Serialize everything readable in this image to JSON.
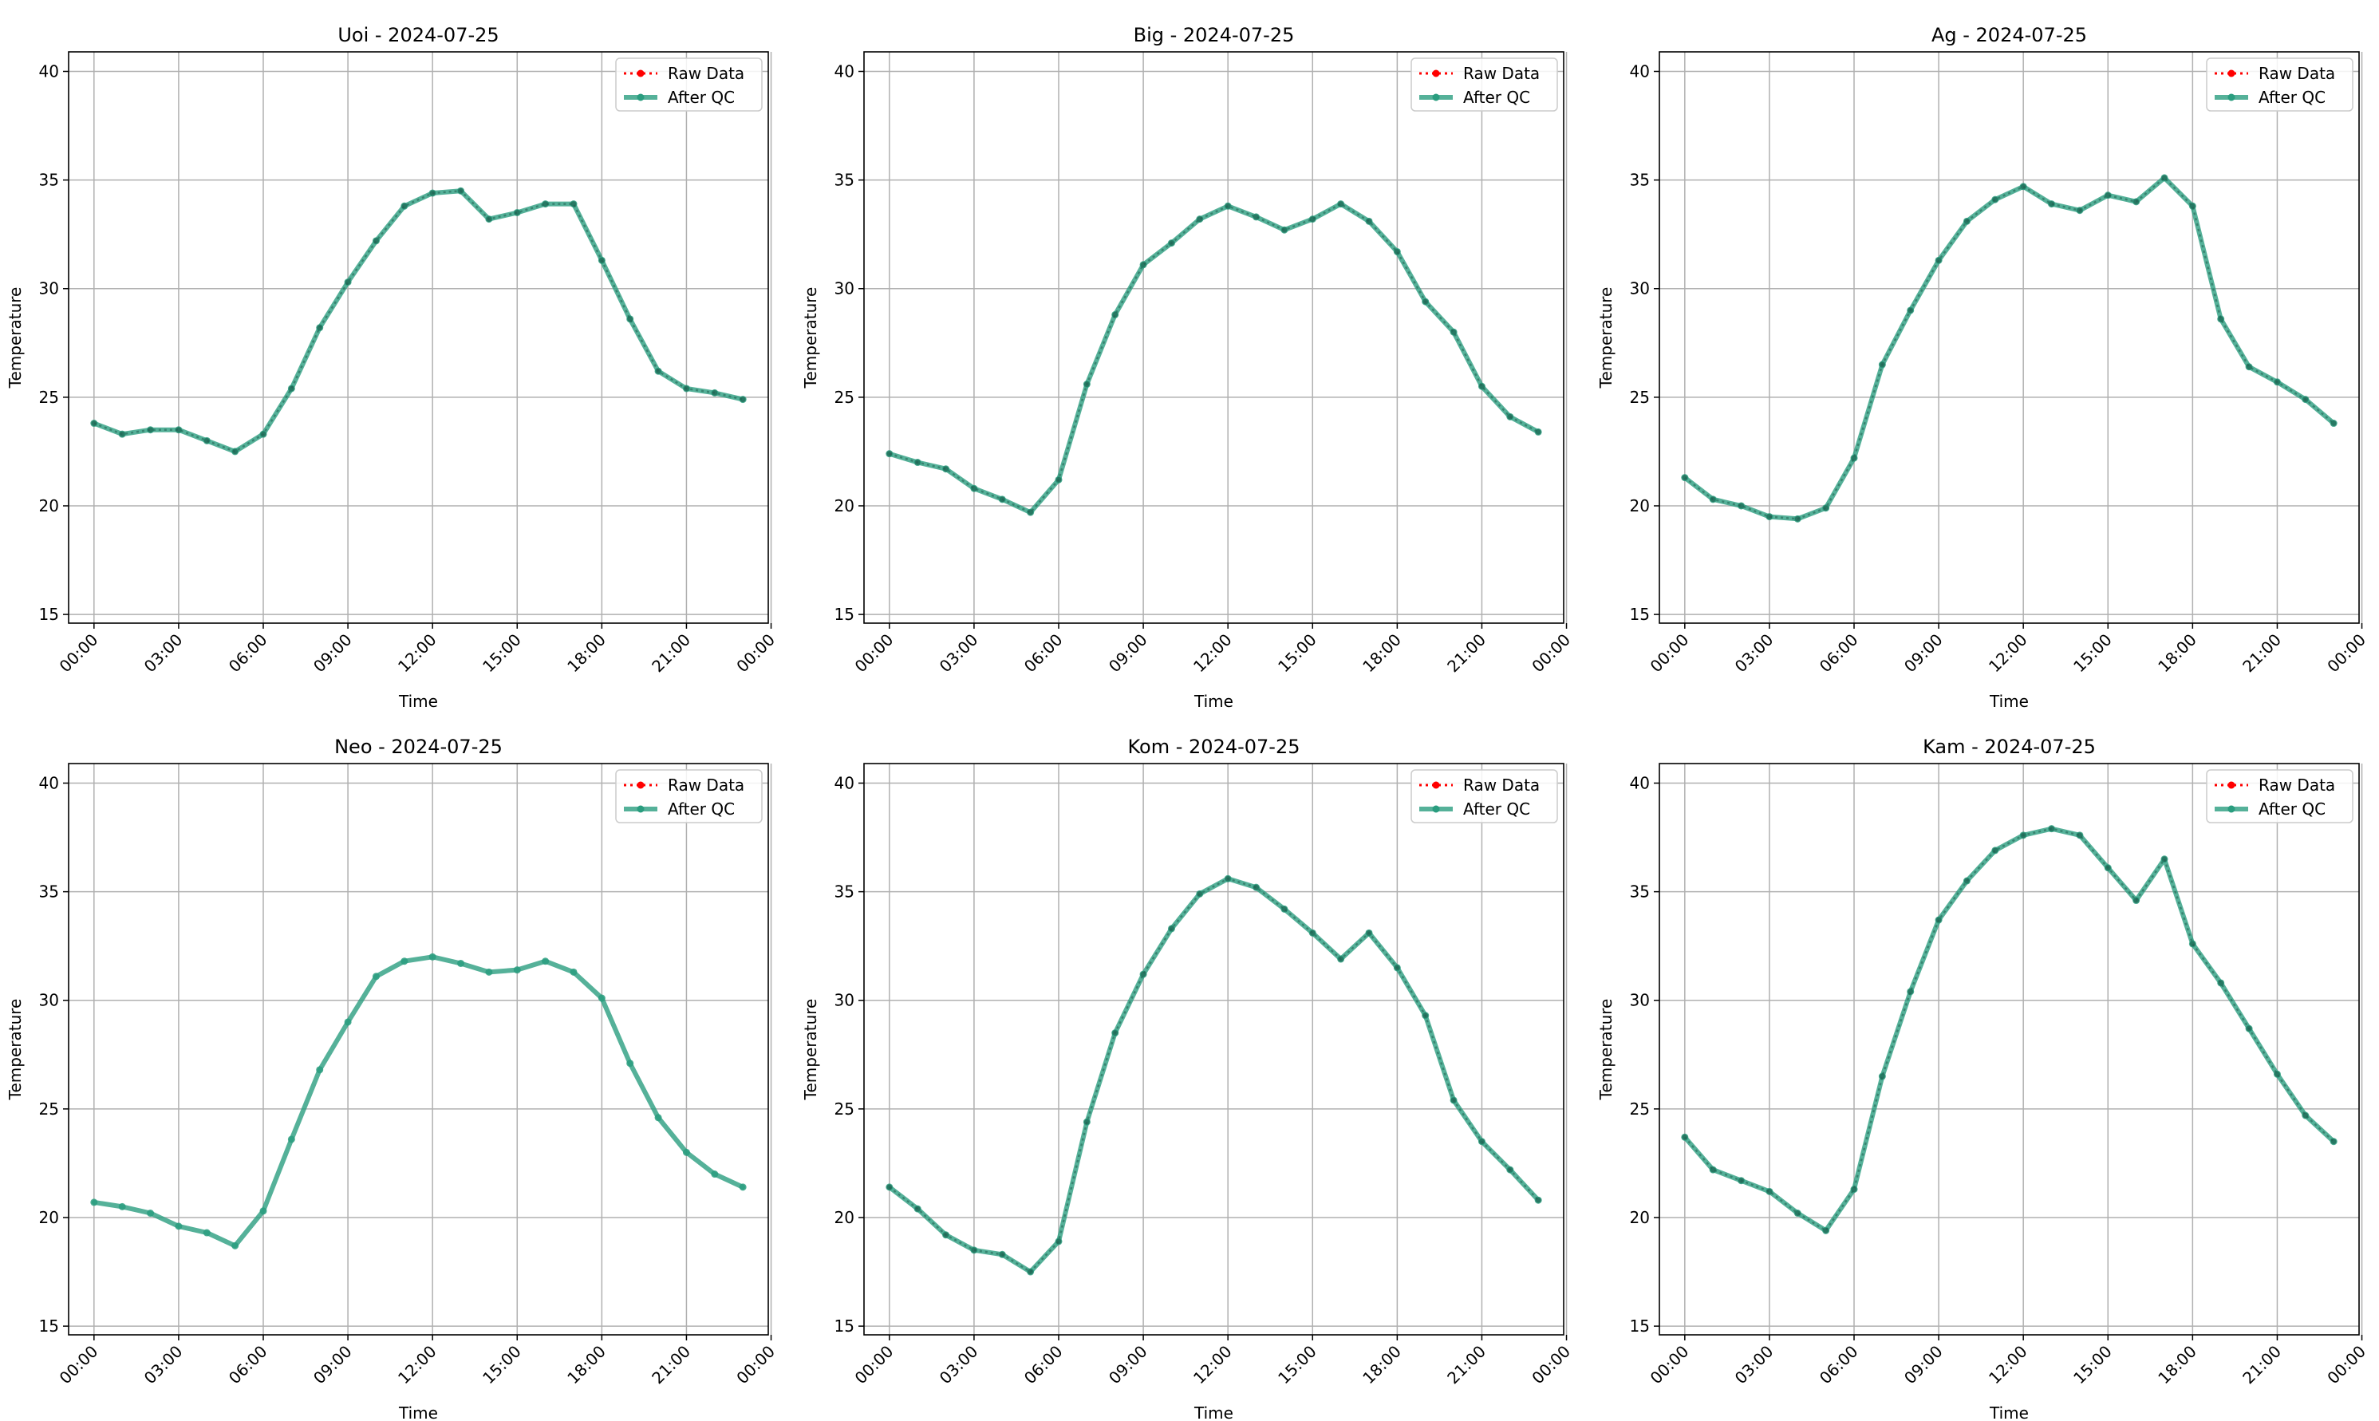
{
  "chart_data": [
    {
      "type": "line",
      "title": "Uoi - 2024-07-25",
      "xlabel": "Time",
      "ylabel": "Temperature",
      "ylim": [
        14.6,
        40.9
      ],
      "xlim": [
        -0.9,
        23.9
      ],
      "x": [
        0,
        1,
        2,
        3,
        4,
        5,
        6,
        7,
        8,
        9,
        10,
        11,
        12,
        13,
        14,
        15,
        16,
        17,
        18,
        19,
        20,
        21,
        22,
        23
      ],
      "yticks": [
        15,
        20,
        25,
        30,
        35,
        40
      ],
      "xticks": [
        0,
        3,
        6,
        9,
        12,
        15,
        18,
        21,
        24
      ],
      "xticklabels": [
        "00:00",
        "03:00",
        "06:00",
        "09:00",
        "12:00",
        "15:00",
        "18:00",
        "21:00",
        "00:00"
      ],
      "grid": true,
      "legend": "top-right",
      "series": [
        {
          "name": "Raw Data",
          "values": [
            23.8,
            23.3,
            23.5,
            23.5,
            23.0,
            22.5,
            23.3,
            25.4,
            28.2,
            30.3,
            32.2,
            33.8,
            34.4,
            34.5,
            33.2,
            33.5,
            33.9,
            33.9,
            31.3,
            28.6,
            26.2,
            25.4,
            25.2,
            24.9
          ]
        },
        {
          "name": "After QC",
          "values": [
            23.8,
            23.3,
            23.5,
            23.5,
            23.0,
            22.5,
            23.3,
            25.4,
            28.2,
            30.3,
            32.2,
            33.8,
            34.4,
            34.5,
            33.2,
            33.5,
            33.9,
            33.9,
            31.3,
            28.6,
            26.2,
            25.4,
            25.2,
            24.9
          ]
        }
      ]
    },
    {
      "type": "line",
      "title": "Big - 2024-07-25",
      "xlabel": "Time",
      "ylabel": "Temperature",
      "ylim": [
        14.6,
        40.9
      ],
      "xlim": [
        -0.9,
        23.9
      ],
      "x": [
        0,
        1,
        2,
        3,
        4,
        5,
        6,
        7,
        8,
        9,
        10,
        11,
        12,
        13,
        14,
        15,
        16,
        17,
        18,
        19,
        20,
        21,
        22,
        23
      ],
      "yticks": [
        15,
        20,
        25,
        30,
        35,
        40
      ],
      "xticks": [
        0,
        3,
        6,
        9,
        12,
        15,
        18,
        21,
        24
      ],
      "xticklabels": [
        "00:00",
        "03:00",
        "06:00",
        "09:00",
        "12:00",
        "15:00",
        "18:00",
        "21:00",
        "00:00"
      ],
      "grid": true,
      "legend": "top-right",
      "series": [
        {
          "name": "Raw Data",
          "values": [
            22.4,
            22.0,
            21.7,
            20.8,
            20.3,
            19.7,
            21.2,
            25.6,
            28.8,
            31.1,
            32.1,
            33.2,
            33.8,
            33.3,
            32.7,
            33.2,
            33.9,
            33.1,
            31.7,
            29.4,
            28.0,
            25.5,
            24.1,
            23.4
          ]
        },
        {
          "name": "After QC",
          "values": [
            22.4,
            22.0,
            21.7,
            20.8,
            20.3,
            19.7,
            21.2,
            25.6,
            28.8,
            31.1,
            32.1,
            33.2,
            33.8,
            33.3,
            32.7,
            33.2,
            33.9,
            33.1,
            31.7,
            29.4,
            28.0,
            25.5,
            24.1,
            23.4
          ]
        }
      ]
    },
    {
      "type": "line",
      "title": "Ag - 2024-07-25",
      "xlabel": "Time",
      "ylabel": "Temperature",
      "ylim": [
        14.6,
        40.9
      ],
      "xlim": [
        -0.9,
        23.9
      ],
      "x": [
        0,
        1,
        2,
        3,
        4,
        5,
        6,
        7,
        8,
        9,
        10,
        11,
        12,
        13,
        14,
        15,
        16,
        17,
        18,
        19,
        20,
        21,
        22,
        23
      ],
      "yticks": [
        15,
        20,
        25,
        30,
        35,
        40
      ],
      "xticks": [
        0,
        3,
        6,
        9,
        12,
        15,
        18,
        21,
        24
      ],
      "xticklabels": [
        "00:00",
        "03:00",
        "06:00",
        "09:00",
        "12:00",
        "15:00",
        "18:00",
        "21:00",
        "00:00"
      ],
      "grid": true,
      "legend": "top-right",
      "series": [
        {
          "name": "Raw Data",
          "values": [
            21.3,
            20.3,
            20.0,
            19.5,
            19.4,
            19.9,
            22.2,
            26.5,
            29.0,
            31.3,
            33.1,
            34.1,
            34.7,
            33.9,
            33.6,
            34.3,
            34.0,
            35.1,
            33.8,
            28.6,
            26.4,
            25.7,
            24.9,
            23.8
          ]
        },
        {
          "name": "After QC",
          "values": [
            21.3,
            20.3,
            20.0,
            19.5,
            19.4,
            19.9,
            22.2,
            26.5,
            29.0,
            31.3,
            33.1,
            34.1,
            34.7,
            33.9,
            33.6,
            34.3,
            34.0,
            35.1,
            33.8,
            28.6,
            26.4,
            25.7,
            24.9,
            23.8
          ]
        }
      ]
    },
    {
      "type": "line",
      "title": "Neo - 2024-07-25",
      "xlabel": "Time",
      "ylabel": "Temperature",
      "ylim": [
        14.6,
        40.9
      ],
      "xlim": [
        -0.9,
        23.9
      ],
      "x": [
        0,
        1,
        2,
        3,
        4,
        5,
        6,
        7,
        8,
        9,
        10,
        11,
        12,
        13,
        14,
        15,
        16,
        17,
        18,
        19,
        20,
        21,
        22,
        23
      ],
      "yticks": [
        15,
        20,
        25,
        30,
        35,
        40
      ],
      "xticks": [
        0,
        3,
        6,
        9,
        12,
        15,
        18,
        21,
        24
      ],
      "xticklabels": [
        "00:00",
        "03:00",
        "06:00",
        "09:00",
        "12:00",
        "15:00",
        "18:00",
        "21:00",
        "00:00"
      ],
      "grid": true,
      "legend": "top-right",
      "series": [
        {
          "name": "Raw Data",
          "values": [
            20.7,
            20.5,
            20.2,
            19.6,
            19.3,
            18.7,
            20.3,
            23.6,
            26.8,
            29.0,
            31.1,
            31.8,
            32.0,
            31.7,
            31.3,
            31.4,
            31.8,
            31.3,
            30.1,
            27.1,
            24.6,
            23.0,
            22.0,
            21.4
          ]
        },
        {
          "name": "After QC",
          "values": [
            20.7,
            20.5,
            20.2,
            19.6,
            19.3,
            18.7,
            20.3,
            23.6,
            26.8,
            29.0,
            31.1,
            31.8,
            32.0,
            31.7,
            31.3,
            31.4,
            31.8,
            31.3,
            30.1,
            27.1,
            24.6,
            23.0,
            22.0,
            21.4
          ]
        }
      ]
    },
    {
      "type": "line",
      "title": "Kom - 2024-07-25",
      "xlabel": "Time",
      "ylabel": "Temperature",
      "ylim": [
        14.6,
        40.9
      ],
      "xlim": [
        -0.9,
        23.9
      ],
      "x": [
        0,
        1,
        2,
        3,
        4,
        5,
        6,
        7,
        8,
        9,
        10,
        11,
        12,
        13,
        14,
        15,
        16,
        17,
        18,
        19,
        20,
        21,
        22,
        23
      ],
      "yticks": [
        15,
        20,
        25,
        30,
        35,
        40
      ],
      "xticks": [
        0,
        3,
        6,
        9,
        12,
        15,
        18,
        21,
        24
      ],
      "xticklabels": [
        "00:00",
        "03:00",
        "06:00",
        "09:00",
        "12:00",
        "15:00",
        "18:00",
        "21:00",
        "00:00"
      ],
      "grid": true,
      "legend": "top-right",
      "series": [
        {
          "name": "Raw Data",
          "values": [
            21.4,
            20.4,
            19.2,
            18.5,
            18.3,
            17.5,
            18.9,
            24.4,
            28.5,
            31.2,
            33.3,
            34.9,
            35.6,
            35.2,
            34.2,
            33.1,
            31.9,
            33.1,
            31.5,
            29.3,
            25.4,
            23.5,
            22.2,
            20.8
          ]
        },
        {
          "name": "After QC",
          "values": [
            21.4,
            20.4,
            19.2,
            18.5,
            18.3,
            17.5,
            18.9,
            24.4,
            28.5,
            31.2,
            33.3,
            34.9,
            35.6,
            35.2,
            34.2,
            33.1,
            31.9,
            33.1,
            31.5,
            29.3,
            25.4,
            23.5,
            22.2,
            20.8
          ]
        }
      ]
    },
    {
      "type": "line",
      "title": "Kam - 2024-07-25",
      "xlabel": "Time",
      "ylabel": "Temperature",
      "ylim": [
        14.6,
        40.9
      ],
      "xlim": [
        -0.9,
        23.9
      ],
      "x": [
        0,
        1,
        2,
        3,
        4,
        5,
        6,
        7,
        8,
        9,
        10,
        11,
        12,
        13,
        14,
        15,
        16,
        17,
        18,
        19,
        20,
        21,
        22,
        23
      ],
      "yticks": [
        15,
        20,
        25,
        30,
        35,
        40
      ],
      "xticks": [
        0,
        3,
        6,
        9,
        12,
        15,
        18,
        21,
        24
      ],
      "xticklabels": [
        "00:00",
        "03:00",
        "06:00",
        "09:00",
        "12:00",
        "15:00",
        "18:00",
        "21:00",
        "00:00"
      ],
      "grid": true,
      "legend": "top-right",
      "series": [
        {
          "name": "Raw Data",
          "values": [
            23.7,
            22.2,
            21.7,
            21.2,
            20.2,
            19.4,
            21.3,
            26.5,
            30.4,
            33.7,
            35.5,
            36.9,
            37.6,
            37.9,
            37.6,
            36.1,
            34.6,
            36.5,
            32.6,
            30.8,
            28.7,
            26.6,
            24.7,
            23.5
          ]
        },
        {
          "name": "After QC",
          "values": [
            23.7,
            22.2,
            21.7,
            21.2,
            20.2,
            19.4,
            21.3,
            26.5,
            30.4,
            33.7,
            35.5,
            36.9,
            37.6,
            37.9,
            37.6,
            36.1,
            34.6,
            36.5,
            32.6,
            30.8,
            28.7,
            26.6,
            24.7,
            23.5
          ]
        }
      ]
    }
  ],
  "colors": {
    "raw": "#ff0000",
    "qc": "#2a9d7f",
    "grid": "#b0b0b0",
    "axis": "#000000"
  }
}
